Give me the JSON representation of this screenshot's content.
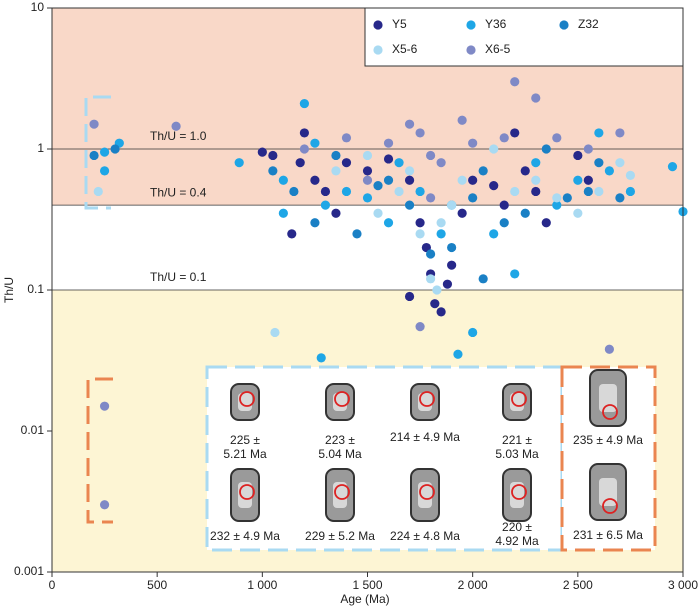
{
  "chart_data": {
    "type": "scatter",
    "x_label": "Age (Ma)",
    "y_label": "Th/U",
    "xlim": [
      0,
      3000
    ],
    "ylim": [
      0.001,
      10
    ],
    "log_y": true,
    "xticks": [
      0,
      500,
      {
        "value": 1000,
        "label": "1 000"
      },
      {
        "value": 1500,
        "label": "1 500"
      },
      {
        "value": 2000,
        "label": "2 000"
      },
      {
        "value": 2500,
        "label": "2 500"
      },
      {
        "value": 3000,
        "label": "3 000"
      }
    ],
    "yticks": [
      0.001,
      0.01,
      0.1,
      1,
      10
    ],
    "legend_position": "upper right",
    "thresholds": [
      {
        "value": 1,
        "label": "Th/U = 1.0"
      },
      {
        "value": 0.4,
        "label": "Th/U = 0.4"
      },
      {
        "value": 0.1,
        "label": "Th/U = 0.1"
      }
    ],
    "series": [
      {
        "name": "Y5",
        "color": "#27288a",
        "x": [
          1000,
          1050,
          1200,
          1250,
          1300,
          1350,
          1400,
          1500,
          1600,
          1700,
          1750,
          1780,
          1800,
          1820,
          1850,
          1900,
          1950,
          2000,
          2100,
          2150,
          2200,
          2250,
          2300,
          2350,
          2500,
          2550,
          1140,
          1700,
          1880,
          1180
        ],
        "values": [
          0.95,
          0.9,
          1.3,
          0.6,
          0.5,
          0.35,
          0.8,
          0.7,
          0.85,
          0.6,
          0.3,
          0.2,
          0.13,
          0.08,
          0.07,
          0.15,
          0.35,
          0.6,
          0.55,
          0.4,
          1.3,
          0.7,
          0.5,
          0.3,
          0.9,
          0.6,
          0.25,
          0.09,
          0.11,
          0.8
        ]
      },
      {
        "name": "Y36",
        "color": "#1ea6e6",
        "x": [
          250,
          250,
          320,
          890,
          1100,
          1200,
          1250,
          1300,
          1280,
          1400,
          1500,
          1600,
          1650,
          1750,
          1850,
          1900,
          2000,
          2100,
          2200,
          2300,
          2400,
          2500,
          2600,
          2650,
          2750,
          2950,
          3000,
          1930,
          1100
        ],
        "values": [
          0.95,
          0.7,
          1.1,
          0.8,
          0.6,
          2.1,
          1.1,
          0.4,
          0.033,
          0.5,
          0.45,
          0.3,
          0.8,
          0.5,
          0.25,
          0.4,
          0.05,
          0.25,
          0.13,
          0.8,
          0.4,
          0.6,
          1.3,
          0.7,
          0.5,
          0.75,
          0.36,
          0.035,
          0.35
        ]
      },
      {
        "name": "Z32",
        "color": "#1a80c5",
        "x": [
          200,
          300,
          1050,
          1150,
          1350,
          1450,
          1550,
          1700,
          1800,
          1900,
          2000,
          2050,
          2150,
          2250,
          2350,
          2450,
          2550,
          2600,
          2700,
          2050,
          1600,
          1250
        ],
        "values": [
          0.9,
          1.0,
          0.7,
          0.5,
          0.9,
          0.25,
          0.55,
          0.4,
          0.18,
          0.2,
          0.45,
          0.7,
          0.3,
          0.35,
          1.0,
          0.45,
          0.5,
          0.8,
          0.45,
          0.12,
          0.6,
          0.3
        ]
      },
      {
        "name": "X5-6",
        "color": "#a9daf2",
        "x": [
          220,
          1060,
          1350,
          1500,
          1650,
          1750,
          1800,
          1830,
          1850,
          1900,
          1950,
          2100,
          2200,
          2300,
          2400,
          2500,
          2600,
          2700,
          2750,
          1700,
          1550
        ],
        "values": [
          0.5,
          0.05,
          0.7,
          0.9,
          0.5,
          0.25,
          0.12,
          0.1,
          0.3,
          0.4,
          0.6,
          1.0,
          0.5,
          0.6,
          0.45,
          0.35,
          0.5,
          0.8,
          0.65,
          0.7,
          0.35
        ]
      },
      {
        "name": "X6-5",
        "color": "#7f89c6",
        "x": [
          200,
          590,
          250,
          250,
          1200,
          1400,
          1500,
          1600,
          1700,
          1750,
          1800,
          1850,
          1950,
          2000,
          2150,
          2200,
          2300,
          2400,
          2550,
          2650,
          2700,
          1750,
          1800
        ],
        "values": [
          1.5,
          1.45,
          0.015,
          0.003,
          1.0,
          1.2,
          0.6,
          1.1,
          1.5,
          1.3,
          0.45,
          0.8,
          1.6,
          1.1,
          1.2,
          3.0,
          2.3,
          1.2,
          1.0,
          0.038,
          1.3,
          0.055,
          0.9
        ]
      }
    ],
    "inset": {
      "left_grains": [
        {
          "label": [
            "225 ±",
            "5.21 Ma"
          ]
        },
        {
          "label": [
            "223 ±",
            "5.04 Ma"
          ]
        },
        {
          "label": [
            "214 ± 4.9 Ma"
          ]
        },
        {
          "label": [
            "221 ±",
            "5.03 Ma"
          ]
        },
        {
          "label": [
            "232 ± 4.9 Ma"
          ]
        },
        {
          "label": [
            "229 ± 5.2 Ma"
          ]
        },
        {
          "label": [
            "224 ± 4.8 Ma"
          ]
        },
        {
          "label": [
            "220 ±",
            "4.92 Ma"
          ]
        }
      ],
      "right_grains": [
        {
          "label": [
            "235 ± 4.9 Ma"
          ]
        },
        {
          "label": [
            "231 ± 6.5 Ma"
          ]
        }
      ]
    }
  }
}
